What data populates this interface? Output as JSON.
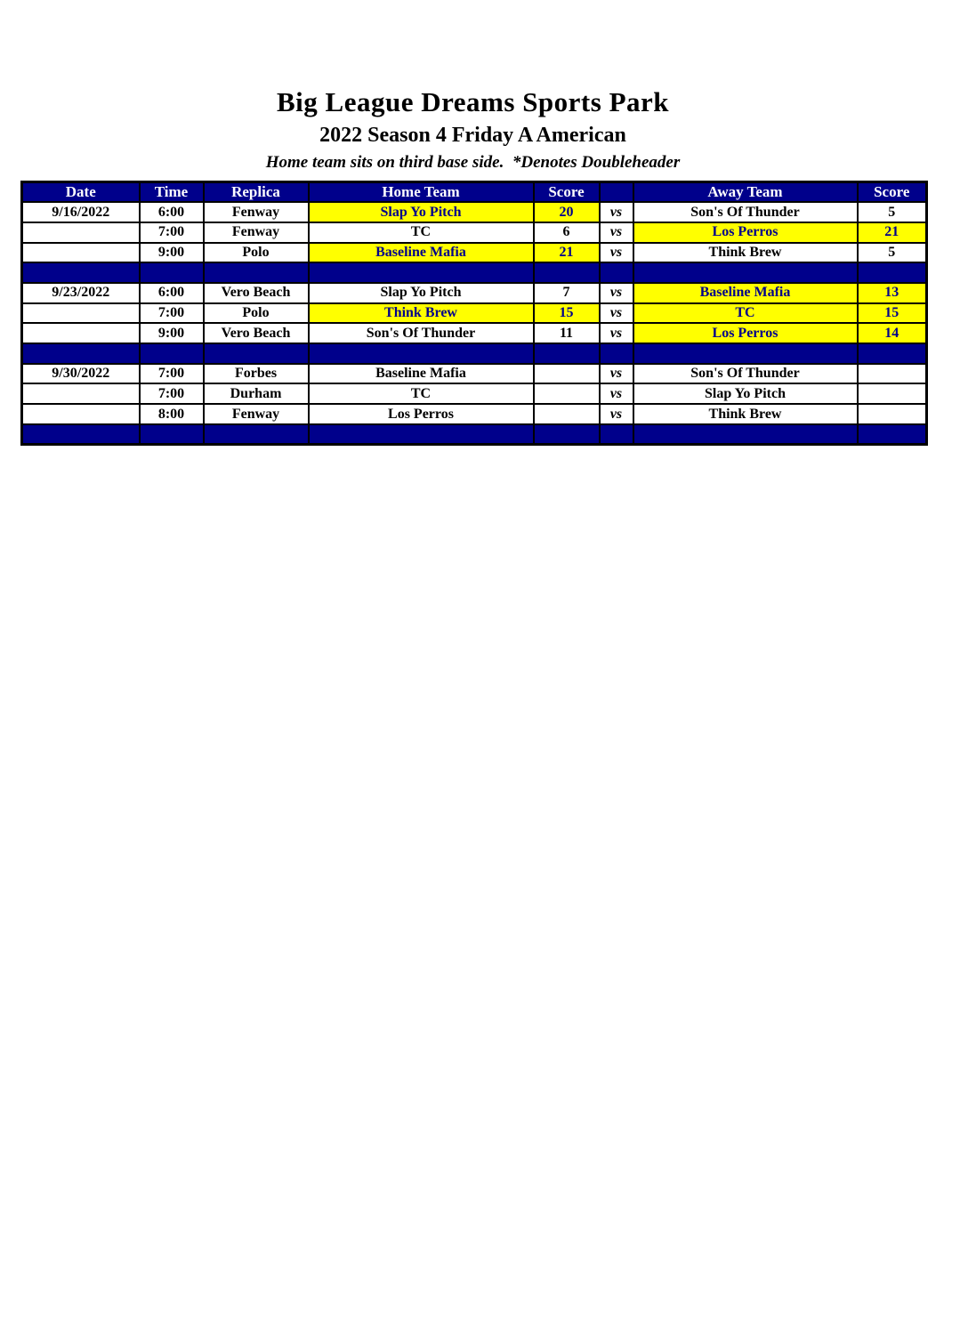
{
  "page": {
    "title": "Big League Dreams Sports Park",
    "subtitle": "2022 Season 4 Friday A American",
    "note": "Home team sits on third base side.  *Denotes Doubleheader"
  },
  "colors": {
    "navy": "#00008B",
    "yellow": "#FFFF00",
    "win_text": "#00008B"
  },
  "table": {
    "columns": [
      "Date",
      "Time",
      "Replica",
      "Home Team",
      "Score",
      "",
      "Away Team",
      "Score"
    ],
    "vs_label": "vs",
    "groups": [
      {
        "date": "9/16/2022",
        "games": [
          {
            "time": "6:00",
            "replica": "Fenway",
            "home": "Slap Yo Pitch",
            "home_score": "20",
            "home_win": true,
            "away": "Son's Of Thunder",
            "away_score": "5",
            "away_win": false
          },
          {
            "time": "7:00",
            "replica": "Fenway",
            "home": "TC",
            "home_score": "6",
            "home_win": false,
            "away": "Los Perros",
            "away_score": "21",
            "away_win": true
          },
          {
            "time": "9:00",
            "replica": "Polo",
            "home": "Baseline Mafia",
            "home_score": "21",
            "home_win": true,
            "away": "Think Brew",
            "away_score": "5",
            "away_win": false
          }
        ]
      },
      {
        "date": "9/23/2022",
        "games": [
          {
            "time": "6:00",
            "replica": "Vero Beach",
            "home": "Slap Yo Pitch",
            "home_score": "7",
            "home_win": false,
            "away": "Baseline Mafia",
            "away_score": "13",
            "away_win": true
          },
          {
            "time": "7:00",
            "replica": "Polo",
            "home": "Think Brew",
            "home_score": "15",
            "home_win": true,
            "away": "TC",
            "away_score": "15",
            "away_win": true
          },
          {
            "time": "9:00",
            "replica": "Vero Beach",
            "home": "Son's Of Thunder",
            "home_score": "11",
            "home_win": false,
            "away": "Los Perros",
            "away_score": "14",
            "away_win": true
          }
        ]
      },
      {
        "date": "9/30/2022",
        "games": [
          {
            "time": "7:00",
            "replica": "Forbes",
            "home": "Baseline Mafia",
            "home_score": "",
            "home_win": false,
            "away": "Son's Of Thunder",
            "away_score": "",
            "away_win": false
          },
          {
            "time": "7:00",
            "replica": "Durham",
            "home": "TC",
            "home_score": "",
            "home_win": false,
            "away": "Slap Yo Pitch",
            "away_score": "",
            "away_win": false
          },
          {
            "time": "8:00",
            "replica": "Fenway",
            "home": "Los Perros",
            "home_score": "",
            "home_win": false,
            "away": "Think Brew",
            "away_score": "",
            "away_win": false
          }
        ]
      }
    ]
  }
}
